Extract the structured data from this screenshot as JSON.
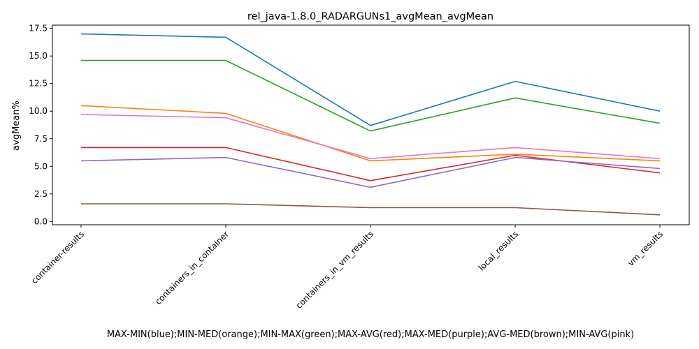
{
  "chart_data": {
    "type": "line",
    "title": "rel_java-1.8.0_RADARGUNs1_avgMean_avgMean",
    "xlabel": "MAX-MIN(blue);MIN-MED(orange);MIN-MAX(green);MAX-AVG(red);MAX-MED(purple);AVG-MED(brown);MIN-AVG(pink)",
    "ylabel": "avgMean%",
    "categories": [
      "container-results",
      "containers_in_container",
      "containers_in_vm_results",
      "local_results",
      "vm_results"
    ],
    "yticks": [
      "0.0",
      "2.5",
      "5.0",
      "7.5",
      "10.0",
      "12.5",
      "15.0",
      "17.5"
    ],
    "ylim": [
      -0.3,
      17.8
    ],
    "grid": false,
    "series": [
      {
        "color": "#1f77b4",
        "values": [
          17.0,
          16.7,
          8.7,
          12.7,
          10.0
        ]
      },
      {
        "color": "#ff7f0e",
        "values": [
          10.5,
          9.8,
          5.5,
          6.1,
          5.5
        ]
      },
      {
        "color": "#2ca02c",
        "values": [
          14.6,
          14.6,
          8.2,
          11.2,
          8.9
        ]
      },
      {
        "color": "#d62728",
        "values": [
          6.7,
          6.7,
          3.7,
          6.0,
          4.4
        ]
      },
      {
        "color": "#9467bd",
        "values": [
          5.5,
          5.8,
          3.1,
          5.8,
          4.8
        ]
      },
      {
        "color": "#8c564b",
        "values": [
          1.6,
          1.6,
          1.25,
          1.25,
          0.6
        ]
      },
      {
        "color": "#e377c2",
        "values": [
          9.7,
          9.4,
          5.7,
          6.7,
          5.7
        ]
      }
    ]
  }
}
